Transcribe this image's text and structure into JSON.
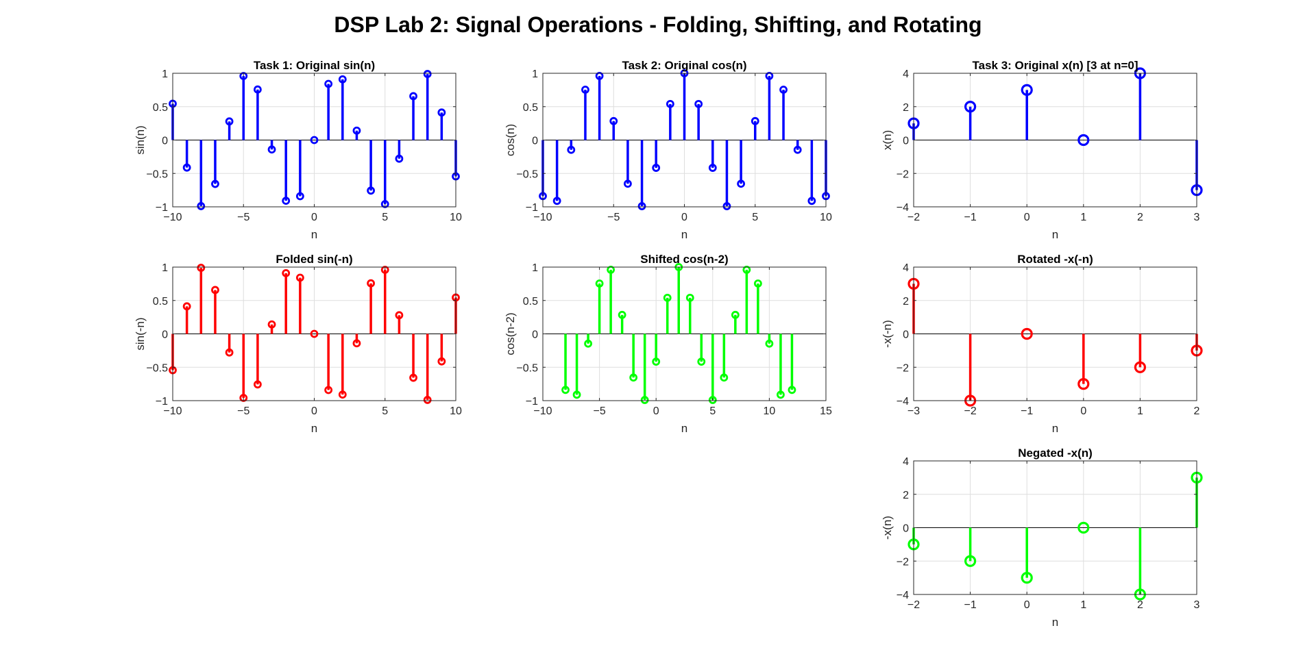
{
  "figure": {
    "title": "DSP Lab 2: Signal Operations - Folding, Shifting, and Rotating"
  },
  "chart_data": [
    {
      "type": "stem",
      "title": "Task 1: Original sin(n)",
      "xlabel": "n",
      "ylabel": "sin(n)",
      "xlim": [
        -10,
        10
      ],
      "ylim": [
        -1,
        1
      ],
      "xticks": [
        -10,
        -5,
        0,
        5,
        10
      ],
      "yticks": [
        -1,
        -0.5,
        0,
        0.5,
        1
      ],
      "color": "#0000ff",
      "grid": true,
      "x": [
        -10,
        -9,
        -8,
        -7,
        -6,
        -5,
        -4,
        -3,
        -2,
        -1,
        0,
        1,
        2,
        3,
        4,
        5,
        6,
        7,
        8,
        9,
        10
      ],
      "y": [
        0.544,
        -0.412,
        -0.989,
        -0.657,
        0.279,
        0.959,
        0.757,
        -0.141,
        -0.909,
        -0.841,
        0,
        0.841,
        0.909,
        0.141,
        -0.757,
        -0.959,
        -0.279,
        0.657,
        0.989,
        0.412,
        -0.544
      ]
    },
    {
      "type": "stem",
      "title": "Task 2: Original cos(n)",
      "xlabel": "n",
      "ylabel": "cos(n)",
      "xlim": [
        -10,
        10
      ],
      "ylim": [
        -1,
        1
      ],
      "xticks": [
        -10,
        -5,
        0,
        5,
        10
      ],
      "yticks": [
        -1,
        -0.5,
        0,
        0.5,
        1
      ],
      "color": "#0000ff",
      "grid": true,
      "x": [
        -10,
        -9,
        -8,
        -7,
        -6,
        -5,
        -4,
        -3,
        -2,
        -1,
        0,
        1,
        2,
        3,
        4,
        5,
        6,
        7,
        8,
        9,
        10
      ],
      "y": [
        -0.839,
        -0.911,
        -0.146,
        0.754,
        0.96,
        0.284,
        -0.654,
        -0.99,
        -0.416,
        0.54,
        1,
        0.54,
        -0.416,
        -0.99,
        -0.654,
        0.284,
        0.96,
        0.754,
        -0.146,
        -0.911,
        -0.839
      ]
    },
    {
      "type": "stem",
      "title": "Task 3: Original x(n) [3 at n=0]",
      "xlabel": "n",
      "ylabel": "x(n)",
      "xlim": [
        -2,
        3
      ],
      "ylim": [
        -4,
        4
      ],
      "xticks": [
        -2,
        -1,
        0,
        1,
        2,
        3
      ],
      "yticks": [
        -4,
        -2,
        0,
        2,
        4
      ],
      "color": "#0000ff",
      "grid": true,
      "x": [
        -2,
        -1,
        0,
        1,
        2,
        3
      ],
      "y": [
        1,
        2,
        3,
        0,
        4,
        -3
      ]
    },
    {
      "type": "stem",
      "title": "Folded sin(-n)",
      "xlabel": "n",
      "ylabel": "sin(-n)",
      "xlim": [
        -10,
        10
      ],
      "ylim": [
        -1,
        1
      ],
      "xticks": [
        -10,
        -5,
        0,
        5,
        10
      ],
      "yticks": [
        -1,
        -0.5,
        0,
        0.5,
        1
      ],
      "color": "#ff0000",
      "grid": true,
      "x": [
        -10,
        -9,
        -8,
        -7,
        -6,
        -5,
        -4,
        -3,
        -2,
        -1,
        0,
        1,
        2,
        3,
        4,
        5,
        6,
        7,
        8,
        9,
        10
      ],
      "y": [
        -0.544,
        0.412,
        0.989,
        0.657,
        -0.279,
        -0.959,
        -0.757,
        0.141,
        0.909,
        0.841,
        0,
        -0.841,
        -0.909,
        -0.141,
        0.757,
        0.959,
        0.279,
        -0.657,
        -0.989,
        -0.412,
        0.544
      ]
    },
    {
      "type": "stem",
      "title": "Shifted cos(n-2)",
      "xlabel": "n",
      "ylabel": "cos(n-2)",
      "xlim": [
        -10,
        15
      ],
      "ylim": [
        -1,
        1
      ],
      "xticks": [
        -10,
        -5,
        0,
        5,
        10,
        15
      ],
      "yticks": [
        -1,
        -0.5,
        0,
        0.5,
        1
      ],
      "color": "#00ff00",
      "grid": true,
      "x": [
        -8,
        -7,
        -6,
        -5,
        -4,
        -3,
        -2,
        -1,
        0,
        1,
        2,
        3,
        4,
        5,
        6,
        7,
        8,
        9,
        10,
        11,
        12
      ],
      "y": [
        -0.839,
        -0.911,
        -0.146,
        0.754,
        0.96,
        0.284,
        -0.654,
        -0.99,
        -0.416,
        0.54,
        1,
        0.54,
        -0.416,
        -0.99,
        -0.654,
        0.284,
        0.96,
        0.754,
        -0.146,
        -0.911,
        -0.839
      ]
    },
    {
      "type": "stem",
      "title": "Rotated -x(-n)",
      "xlabel": "n",
      "ylabel": "-x(-n)",
      "xlim": [
        -3,
        2
      ],
      "ylim": [
        -4,
        4
      ],
      "xticks": [
        -3,
        -2,
        -1,
        0,
        1,
        2
      ],
      "yticks": [
        -4,
        -2,
        0,
        2,
        4
      ],
      "color": "#ff0000",
      "grid": true,
      "x": [
        -3,
        -2,
        -1,
        0,
        1,
        2
      ],
      "y": [
        3,
        -4,
        0,
        -3,
        -2,
        -1
      ]
    },
    {
      "type": "stem",
      "title": "Negated -x(n)",
      "xlabel": "n",
      "ylabel": "-x(n)",
      "xlim": [
        -2,
        3
      ],
      "ylim": [
        -4,
        4
      ],
      "xticks": [
        -2,
        -1,
        0,
        1,
        2,
        3
      ],
      "yticks": [
        -4,
        -2,
        0,
        2,
        4
      ],
      "color": "#00ff00",
      "grid": true,
      "x": [
        -2,
        -1,
        0,
        1,
        2,
        3
      ],
      "y": [
        -1,
        -2,
        -3,
        0,
        -4,
        3
      ]
    }
  ]
}
